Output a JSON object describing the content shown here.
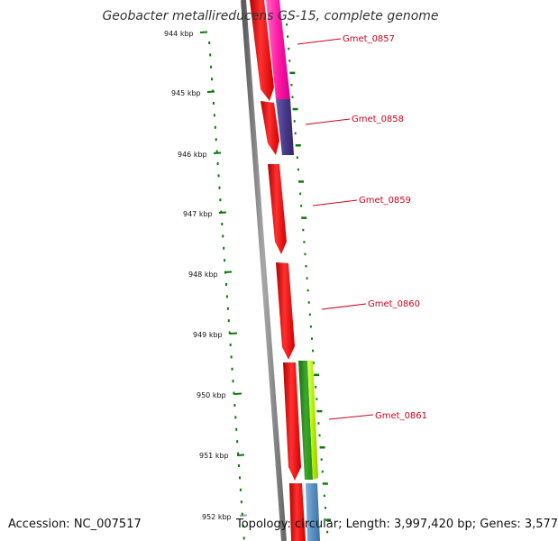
{
  "title": "Geobacter metallireducens GS-15, complete genome",
  "footer": {
    "accession": "Accession: NC_007517",
    "summary": "Topology: circular; Length: 3,997,420 bp; Genes: 3,577"
  },
  "ticks": [
    "944 kbp",
    "945 kbp",
    "946 kbp",
    "947 kbp",
    "948 kbp",
    "949 kbp",
    "950 kbp",
    "951 kbp",
    "952 kbp"
  ],
  "gene_labels": [
    "Gmet_0857",
    "Gmet_0858",
    "Gmet_0859",
    "Gmet_0860",
    "Gmet_0861"
  ],
  "colors": {
    "backbone": "#7f7f7f",
    "gene_red": "#ff0000",
    "tick_green": "#0a7a0a",
    "label_red": "#d0021b",
    "magenta": "#ff1aa6",
    "indigo": "#4a3a8a",
    "green": "#2a8a1a",
    "lime": "#b4f000",
    "steelblue": "#5a90c0"
  }
}
